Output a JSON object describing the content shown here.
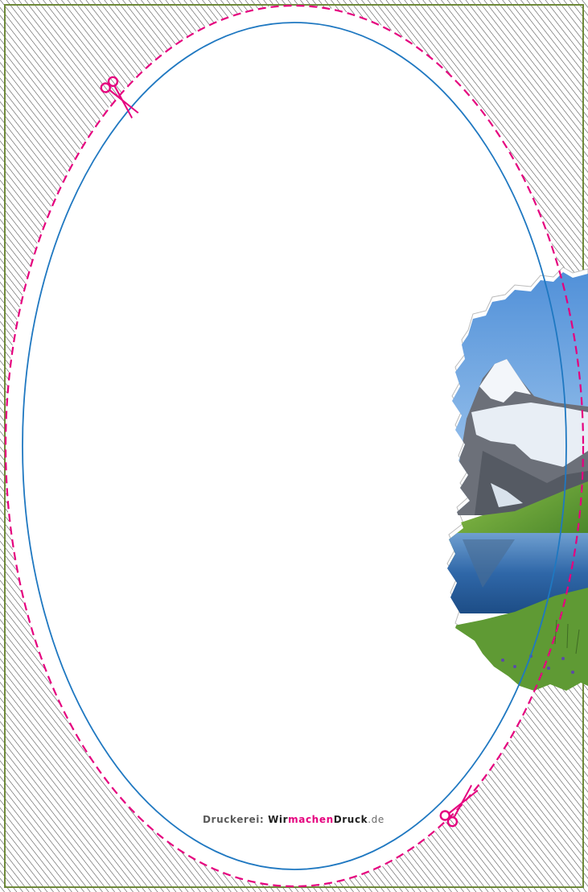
{
  "colors": {
    "frame": "#6f8a3a",
    "hatch": "#222222",
    "cut_line": "#e5007e",
    "safe_line": "#1f78c1",
    "brand_pink": "#e5007e"
  },
  "imprint": {
    "prefix": "Druckerei: ",
    "part1": "Wir",
    "part2": "machen",
    "part3": "Druck",
    "suffix": ".de"
  },
  "icons": {
    "scissors_top": "scissors-icon",
    "scissors_bottom": "scissors-icon"
  },
  "photo": {
    "subject": "alpine lake with snow-capped mountain"
  }
}
